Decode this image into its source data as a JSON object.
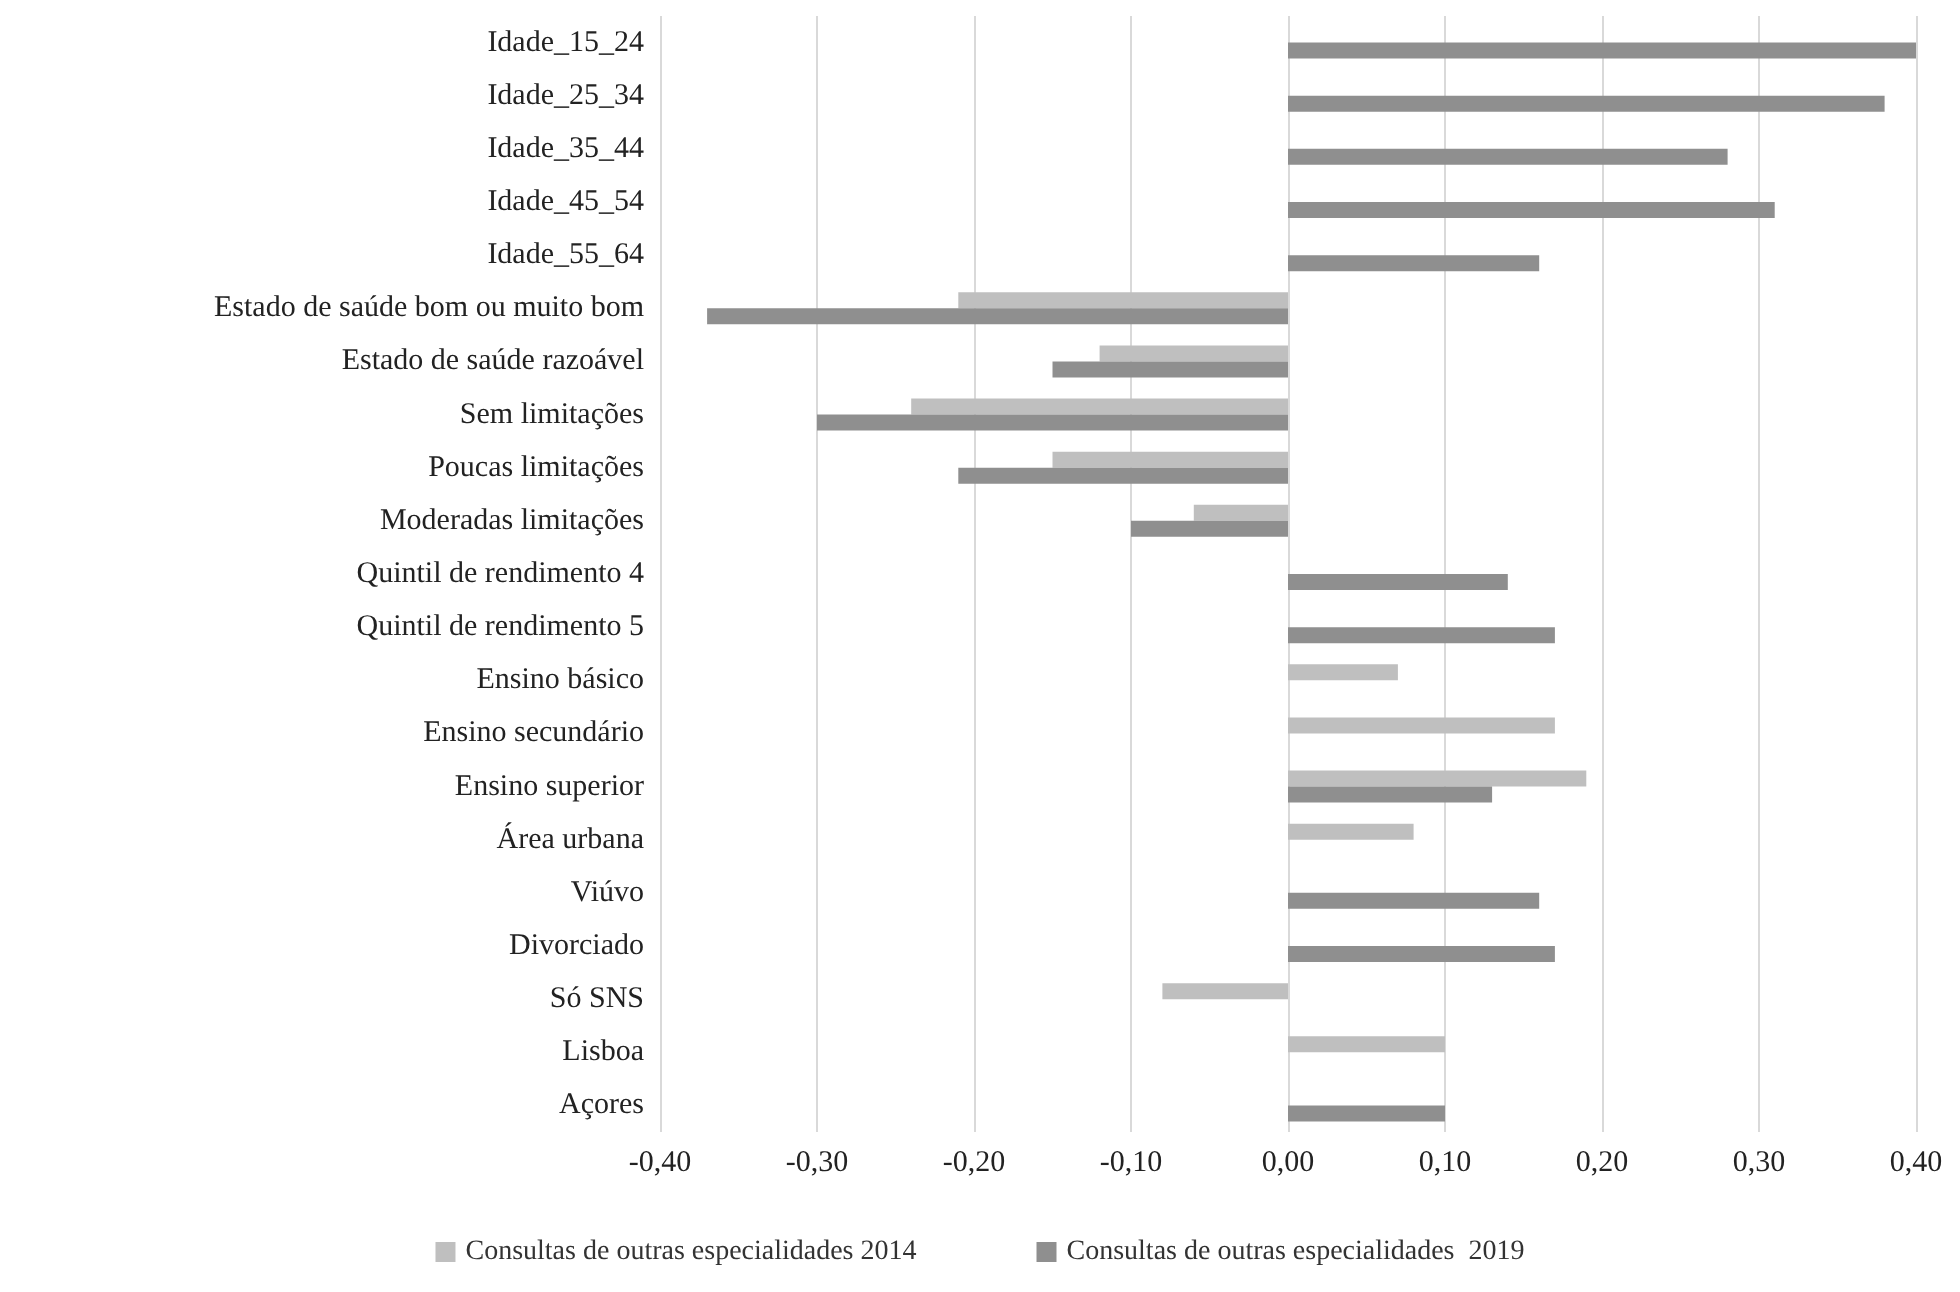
{
  "chart_data": {
    "type": "bar",
    "orientation": "horizontal",
    "categories": [
      "Idade_15_24",
      "Idade_25_34",
      "Idade_35_44",
      "Idade_45_54",
      "Idade_55_64",
      "Estado de saúde bom ou muito bom",
      "Estado de saúde razoável",
      "Sem limitações",
      "Poucas limitações",
      "Moderadas limitações",
      "Quintil de rendimento 4",
      "Quintil de rendimento 5",
      "Ensino básico",
      "Ensino secundário",
      "Ensino superior",
      "Área urbana",
      "Viúvo",
      "Divorciado",
      "Só SNS",
      "Lisboa",
      "Açores"
    ],
    "series": [
      {
        "name": "Consultas de outras especialidades 2014",
        "color": "#bfbfbf",
        "values": [
          null,
          null,
          null,
          null,
          null,
          -0.21,
          -0.12,
          -0.24,
          -0.15,
          -0.06,
          null,
          null,
          0.07,
          0.17,
          0.19,
          0.08,
          null,
          null,
          -0.08,
          0.1,
          null
        ]
      },
      {
        "name": "Consultas de outras especialidades  2019",
        "color": "#8f8f8f",
        "values": [
          0.4,
          0.38,
          0.28,
          0.31,
          0.16,
          -0.37,
          -0.15,
          -0.3,
          -0.21,
          -0.1,
          0.14,
          0.17,
          null,
          null,
          0.13,
          null,
          0.16,
          0.17,
          null,
          null,
          0.1
        ]
      }
    ],
    "xlim": [
      -0.4,
      0.4
    ],
    "xticks": [
      {
        "value": -0.4,
        "label": "-0,40"
      },
      {
        "value": -0.3,
        "label": "-0,30"
      },
      {
        "value": -0.2,
        "label": "-0,20"
      },
      {
        "value": -0.1,
        "label": "-0,10"
      },
      {
        "value": 0,
        "label": "0,00"
      },
      {
        "value": 0.1,
        "label": "0,10"
      },
      {
        "value": 0.2,
        "label": "0,20"
      },
      {
        "value": 0.3,
        "label": "0,30"
      },
      {
        "value": 0.4,
        "label": "0,40"
      }
    ],
    "grid": "x",
    "legend": "bottom"
  }
}
